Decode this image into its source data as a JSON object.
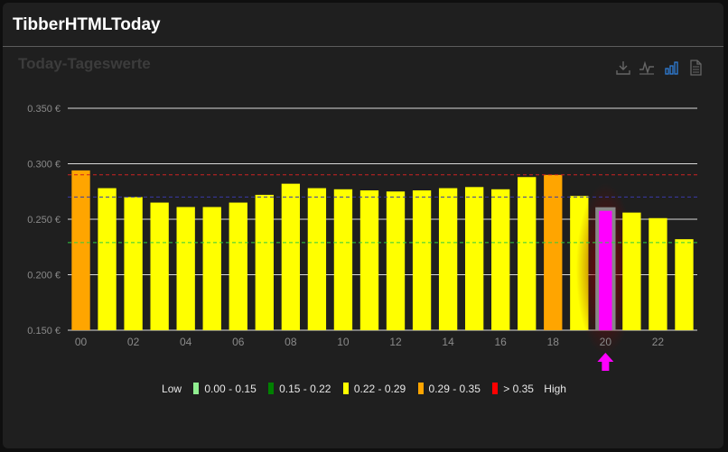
{
  "card": {
    "title": "TibberHTMLToday"
  },
  "toolbar": {
    "icons": [
      "download-icon",
      "line-chart-icon",
      "bar-chart-icon",
      "document-icon"
    ],
    "active_color": "#2f7ed8",
    "inactive_color": "#666666"
  },
  "chart_data": {
    "type": "bar",
    "title": "Today-Tageswerte",
    "categories": [
      "00",
      "01",
      "02",
      "03",
      "04",
      "05",
      "06",
      "07",
      "08",
      "09",
      "10",
      "11",
      "12",
      "13",
      "14",
      "15",
      "16",
      "17",
      "18",
      "19",
      "20",
      "21",
      "22",
      "23"
    ],
    "tick_labels": [
      "00",
      "02",
      "04",
      "06",
      "08",
      "10",
      "12",
      "14",
      "16",
      "18",
      "20",
      "22"
    ],
    "values": [
      0.294,
      0.278,
      0.27,
      0.265,
      0.261,
      0.261,
      0.265,
      0.272,
      0.282,
      0.278,
      0.277,
      0.276,
      0.275,
      0.276,
      0.278,
      0.279,
      0.277,
      0.288,
      0.29,
      0.271,
      0.26,
      0.256,
      0.251,
      0.232
    ],
    "bar_colors": [
      "#ffa500",
      "#ffff00",
      "#ffff00",
      "#ffff00",
      "#ffff00",
      "#ffff00",
      "#ffff00",
      "#ffff00",
      "#ffff00",
      "#ffff00",
      "#ffff00",
      "#ffff00",
      "#ffff00",
      "#ffff00",
      "#ffff00",
      "#ffff00",
      "#ffff00",
      "#ffff00",
      "#ffa500",
      "#ffff00",
      "#ff00ff",
      "#ffff00",
      "#ffff00",
      "#ffff00"
    ],
    "current_hour_index": 20,
    "current_marker_color": "#ff00ff",
    "ylim": [
      0.15,
      0.35
    ],
    "yticks": [
      {
        "value": 0.15,
        "label": "0.150 €"
      },
      {
        "value": 0.2,
        "label": "0.200 €"
      },
      {
        "value": 0.25,
        "label": "0.250 €"
      },
      {
        "value": 0.3,
        "label": "0.300 €"
      },
      {
        "value": 0.35,
        "label": "0.350 €"
      }
    ],
    "grid": true,
    "reference_lines": [
      {
        "value": 0.29,
        "color": "#cc2222",
        "style": "dashed"
      },
      {
        "value": 0.27,
        "color": "#3a3aa8",
        "style": "dashed"
      },
      {
        "value": 0.229,
        "color": "#2ecc40",
        "style": "dashed"
      }
    ],
    "legend_placement": "bottom",
    "legend": {
      "low_label": "Low",
      "high_label": "High",
      "items": [
        {
          "label": "0.00 - 0.15",
          "color": "#90ee90"
        },
        {
          "label": "0.15 - 0.22",
          "color": "#008000"
        },
        {
          "label": "0.22 - 0.29",
          "color": "#ffff00"
        },
        {
          "label": "0.29 - 0.35",
          "color": "#ffa500"
        },
        {
          "label": "> 0.35",
          "color": "#ff0000"
        }
      ]
    }
  }
}
